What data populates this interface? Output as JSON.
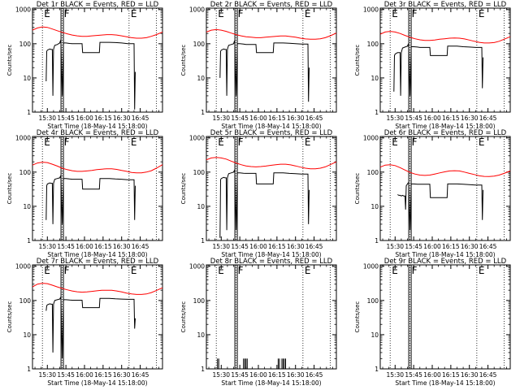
{
  "page": {
    "title": ""
  },
  "common": {
    "xlabel": "Start Time (18-May-14 15:18:00)",
    "ylabel": "Counts/sec",
    "x_tick_labels": [
      "15:30",
      "15:45",
      "16:00",
      "16:15",
      "16:30",
      "16:45"
    ],
    "x_tick_minutes": [
      30,
      45,
      60,
      75,
      90,
      105
    ],
    "x_range_minutes": [
      18,
      123
    ],
    "y_tick_labels": [
      "1",
      "10",
      "100",
      "1000"
    ],
    "y_range": [
      1,
      1100
    ],
    "y_scale": "log",
    "flags": [
      {
        "label": "E",
        "minute": 26
      },
      {
        "label": "F",
        "minute": 42
      },
      {
        "label": "E",
        "minute": 96
      }
    ],
    "dotted_lines_minutes": [
      26,
      42,
      96,
      118
    ],
    "colors": {
      "events": "#000000",
      "lld": "#ff0000"
    }
  },
  "chart_data": [
    {
      "type": "line",
      "title": "Det 1r BLACK = Events, RED = LLD",
      "x_unit": "minutes after 15:00",
      "series": [
        {
          "name": "LLD",
          "color": "#ff0000",
          "x": [
            18,
            22,
            26,
            30,
            34,
            38,
            42,
            46,
            50,
            54,
            58,
            62,
            66,
            70,
            74,
            78,
            82,
            86,
            90,
            94,
            98,
            102,
            106,
            110,
            114,
            118,
            123
          ],
          "y": [
            250,
            290,
            310,
            300,
            270,
            240,
            215,
            195,
            180,
            170,
            165,
            165,
            170,
            175,
            180,
            185,
            185,
            180,
            170,
            160,
            150,
            145,
            145,
            150,
            165,
            185,
            220
          ]
        },
        {
          "name": "Events",
          "color": "#000000",
          "x": [
            29,
            29.5,
            30,
            32,
            33,
            34,
            34.5,
            35,
            35.5,
            36,
            38,
            40,
            40.5,
            41,
            42,
            43,
            45,
            48,
            50,
            55,
            58,
            58.5,
            60,
            65,
            70,
            72,
            72.5,
            74,
            80,
            85,
            90,
            95,
            98,
            100,
            100.5,
            101
          ],
          "y": [
            8,
            60,
            65,
            70,
            68,
            68,
            3,
            68,
            80,
            90,
            95,
            105,
            120,
            100,
            3,
            105,
            105,
            102,
            100,
            100,
            100,
            55,
            55,
            55,
            55,
            55,
            110,
            110,
            110,
            108,
            105,
            100,
            100,
            100,
            1.2,
            15
          ]
        }
      ]
    },
    {
      "type": "line",
      "title": "Det 2r BLACK = Events, RED = LLD",
      "x_unit": "minutes after 15:00",
      "series": [
        {
          "name": "LLD",
          "color": "#ff0000",
          "x": [
            18,
            22,
            26,
            30,
            34,
            38,
            42,
            46,
            50,
            54,
            58,
            62,
            66,
            70,
            74,
            78,
            82,
            86,
            90,
            94,
            98,
            102,
            106,
            110,
            114,
            118,
            123
          ],
          "y": [
            220,
            250,
            260,
            250,
            230,
            205,
            185,
            170,
            160,
            155,
            150,
            150,
            155,
            160,
            165,
            168,
            168,
            162,
            155,
            145,
            138,
            135,
            135,
            140,
            150,
            170,
            205
          ]
        },
        {
          "name": "Events",
          "color": "#000000",
          "x": [
            29,
            29.5,
            30,
            32,
            33,
            34,
            34.5,
            35,
            35.5,
            36,
            38,
            40,
            40.5,
            41,
            42,
            43,
            45,
            48,
            50,
            55,
            58,
            58.5,
            60,
            65,
            70,
            72,
            72.5,
            74,
            80,
            85,
            90,
            95,
            98,
            100,
            100.5,
            101
          ],
          "y": [
            10,
            60,
            65,
            70,
            68,
            68,
            3,
            68,
            80,
            90,
            95,
            100,
            115,
            100,
            3,
            100,
            100,
            98,
            95,
            95,
            95,
            55,
            55,
            55,
            55,
            55,
            105,
            105,
            105,
            103,
            100,
            98,
            98,
            98,
            2,
            20
          ]
        }
      ]
    },
    {
      "type": "line",
      "title": "Det 3r BLACK = Events, RED = LLD",
      "x_unit": "minutes after 15:00",
      "series": [
        {
          "name": "LLD",
          "color": "#ff0000",
          "x": [
            18,
            22,
            26,
            30,
            34,
            38,
            42,
            46,
            50,
            54,
            58,
            62,
            66,
            70,
            74,
            78,
            82,
            86,
            90,
            94,
            98,
            102,
            106,
            110,
            114,
            118,
            123
          ],
          "y": [
            190,
            220,
            230,
            220,
            200,
            175,
            155,
            140,
            130,
            125,
            125,
            128,
            135,
            140,
            145,
            148,
            145,
            138,
            128,
            118,
            110,
            105,
            105,
            108,
            118,
            135,
            160
          ]
        },
        {
          "name": "Events",
          "color": "#000000",
          "x": [
            29,
            29.5,
            30,
            32,
            33,
            34,
            34.5,
            35,
            35.5,
            36,
            38,
            40,
            40.5,
            41,
            42,
            43,
            45,
            48,
            50,
            55,
            58,
            58.5,
            60,
            65,
            70,
            72,
            72.5,
            74,
            80,
            85,
            90,
            95,
            98,
            100,
            100.5,
            101
          ],
          "y": [
            4,
            45,
            50,
            55,
            55,
            55,
            3,
            55,
            65,
            75,
            80,
            85,
            95,
            80,
            3,
            82,
            82,
            80,
            78,
            78,
            78,
            45,
            45,
            45,
            45,
            45,
            85,
            85,
            85,
            82,
            80,
            78,
            78,
            78,
            5,
            40
          ]
        }
      ]
    },
    {
      "type": "line",
      "title": "Det 4r BLACK = Events, RED = LLD",
      "x_unit": "minutes after 15:00",
      "series": [
        {
          "name": "LLD",
          "color": "#ff0000",
          "x": [
            18,
            22,
            26,
            30,
            34,
            38,
            42,
            46,
            50,
            54,
            58,
            62,
            66,
            70,
            74,
            78,
            82,
            86,
            90,
            94,
            98,
            102,
            106,
            110,
            114,
            118,
            123
          ],
          "y": [
            160,
            185,
            195,
            190,
            170,
            150,
            130,
            118,
            110,
            105,
            105,
            108,
            112,
            118,
            122,
            125,
            125,
            120,
            112,
            105,
            98,
            95,
            95,
            100,
            110,
            130,
            165
          ]
        },
        {
          "name": "Events",
          "color": "#000000",
          "x": [
            29,
            29.5,
            30,
            32,
            33,
            34,
            34.5,
            35,
            35.5,
            36,
            38,
            40,
            40.5,
            41,
            42,
            43,
            45,
            48,
            50,
            55,
            58,
            58.5,
            60,
            65,
            70,
            72,
            72.5,
            74,
            80,
            85,
            90,
            95,
            98,
            100,
            100.5,
            101
          ],
          "y": [
            4,
            40,
            45,
            48,
            47,
            47,
            3,
            47,
            55,
            62,
            65,
            68,
            75,
            65,
            3,
            65,
            65,
            63,
            62,
            62,
            62,
            32,
            32,
            32,
            32,
            32,
            65,
            65,
            65,
            63,
            62,
            60,
            60,
            60,
            4,
            40
          ]
        }
      ]
    },
    {
      "type": "line",
      "title": "Det 5r BLACK = Events, RED = LLD",
      "x_unit": "minutes after 15:00",
      "series": [
        {
          "name": "LLD",
          "color": "#ff0000",
          "x": [
            18,
            22,
            26,
            30,
            34,
            38,
            42,
            46,
            50,
            54,
            58,
            62,
            66,
            70,
            74,
            78,
            82,
            86,
            90,
            94,
            98,
            102,
            106,
            110,
            114,
            118,
            123
          ],
          "y": [
            230,
            260,
            270,
            260,
            240,
            210,
            185,
            165,
            152,
            145,
            142,
            145,
            150,
            158,
            165,
            170,
            170,
            163,
            152,
            140,
            130,
            125,
            125,
            130,
            142,
            165,
            200
          ]
        },
        {
          "name": "Events",
          "color": "#000000",
          "x": [
            29,
            29.5,
            30,
            32,
            33,
            34,
            34.5,
            35,
            35.5,
            36,
            38,
            40,
            40.5,
            41,
            42,
            43,
            45,
            48,
            50,
            55,
            58,
            58.5,
            60,
            65,
            70,
            72,
            72.5,
            74,
            80,
            85,
            90,
            95,
            98,
            100,
            100.5,
            101
          ],
          "y": [
            1.2,
            60,
            65,
            70,
            68,
            68,
            2,
            68,
            80,
            90,
            95,
            100,
            110,
            95,
            2,
            95,
            95,
            93,
            92,
            92,
            92,
            45,
            45,
            45,
            45,
            45,
            95,
            95,
            95,
            92,
            90,
            88,
            88,
            88,
            3,
            30
          ]
        }
      ]
    },
    {
      "type": "line",
      "title": "Det 6r BLACK = Events, RED = LLD",
      "x_unit": "minutes after 15:00",
      "series": [
        {
          "name": "LLD",
          "color": "#ff0000",
          "x": [
            18,
            22,
            26,
            30,
            34,
            38,
            42,
            46,
            50,
            54,
            58,
            62,
            66,
            70,
            74,
            78,
            82,
            86,
            90,
            94,
            98,
            102,
            106,
            110,
            114,
            118,
            123
          ],
          "y": [
            140,
            160,
            165,
            155,
            135,
            115,
            98,
            88,
            82,
            80,
            82,
            88,
            95,
            102,
            108,
            110,
            108,
            100,
            92,
            85,
            78,
            75,
            74,
            76,
            82,
            92,
            108
          ]
        },
        {
          "name": "Events",
          "color": "#000000",
          "x": [
            32,
            33,
            34,
            35,
            36,
            37,
            38,
            38.5,
            39,
            40,
            40.5,
            41,
            42,
            43,
            45,
            48,
            50,
            55,
            58,
            58.5,
            60,
            65,
            70,
            72,
            72.5,
            74,
            80,
            85,
            90,
            95,
            98,
            100,
            100.5,
            101
          ],
          "y": [
            22,
            21,
            21,
            20,
            21,
            20,
            20,
            8,
            40,
            45,
            48,
            45,
            2,
            45,
            45,
            44,
            44,
            44,
            44,
            18,
            18,
            18,
            18,
            18,
            45,
            45,
            45,
            44,
            43,
            42,
            42,
            42,
            4,
            30
          ]
        }
      ]
    },
    {
      "type": "line",
      "title": "Det 7r BLACK = Events, RED = LLD",
      "x_unit": "minutes after 15:00",
      "series": [
        {
          "name": "LLD",
          "color": "#ff0000",
          "x": [
            18,
            22,
            26,
            30,
            34,
            38,
            42,
            46,
            50,
            54,
            58,
            62,
            66,
            70,
            74,
            78,
            82,
            86,
            90,
            94,
            98,
            102,
            106,
            110,
            114,
            118,
            123
          ],
          "y": [
            250,
            300,
            320,
            310,
            280,
            250,
            225,
            205,
            190,
            180,
            175,
            178,
            185,
            192,
            198,
            200,
            198,
            190,
            178,
            165,
            155,
            150,
            150,
            155,
            170,
            195,
            235
          ]
        },
        {
          "name": "Events",
          "color": "#000000",
          "x": [
            29,
            29.5,
            30,
            32,
            33,
            34,
            34.5,
            35,
            35.5,
            36,
            38,
            40,
            40.5,
            41,
            42,
            43,
            45,
            48,
            50,
            55,
            58,
            58.5,
            60,
            65,
            70,
            72,
            72.5,
            74,
            80,
            85,
            90,
            95,
            98,
            100,
            100.5,
            101
          ],
          "y": [
            50,
            70,
            75,
            80,
            78,
            78,
            3,
            78,
            90,
            100,
            105,
            110,
            120,
            105,
            2,
            105,
            105,
            103,
            102,
            102,
            102,
            62,
            62,
            62,
            62,
            62,
            115,
            115,
            115,
            112,
            110,
            108,
            108,
            108,
            15,
            30
          ]
        }
      ]
    },
    {
      "type": "line",
      "title": "Det 8r BLACK = Events, RED = LLD",
      "x_unit": "minutes after 15:00",
      "series": [
        {
          "name": "Events",
          "color": "#000000",
          "spikes": true,
          "x": [
            27,
            28,
            48,
            49,
            50,
            51,
            76,
            77,
            79,
            80,
            81,
            82
          ],
          "y": [
            2,
            2,
            2,
            2,
            2,
            2,
            2,
            2,
            2,
            2,
            2,
            2
          ]
        }
      ]
    },
    {
      "type": "line",
      "title": "Det 9r BLACK = Events, RED = LLD",
      "x_unit": "minutes after 15:00",
      "series": []
    }
  ]
}
